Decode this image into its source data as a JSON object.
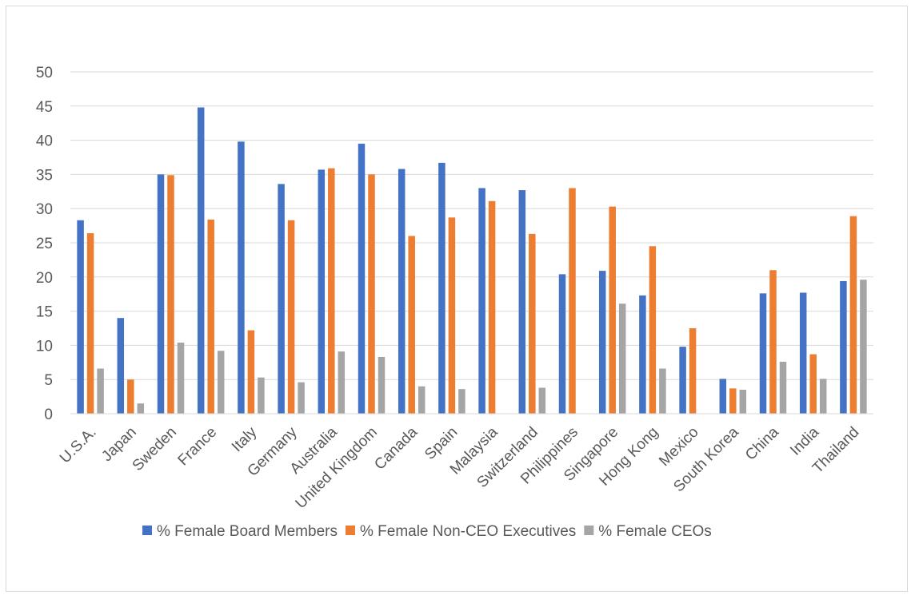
{
  "chart_data": {
    "type": "bar",
    "title": "",
    "xlabel": "",
    "ylabel": "",
    "ylim": [
      0,
      50
    ],
    "yticks": [
      "0",
      "5",
      "10",
      "15",
      "20",
      "25",
      "30",
      "35",
      "40",
      "45",
      "50"
    ],
    "grid": true,
    "legend_position": "bottom",
    "categories": [
      "U.S.A.",
      "Japan",
      "Sweden",
      "France",
      "Italy",
      "Germany",
      "Australia",
      "United Kingdom",
      "Canada",
      "Spain",
      "Malaysia",
      "Switzerland",
      "Philippines",
      "Singapore",
      "Hong Kong",
      "Mexico",
      "South Korea",
      "China",
      "India",
      "Thailand"
    ],
    "series": [
      {
        "name": "% Female Board Members",
        "color": "#4472c4",
        "values": [
          28.3,
          14.0,
          35.0,
          44.8,
          39.8,
          33.6,
          35.7,
          39.5,
          35.8,
          36.7,
          33.0,
          32.7,
          20.4,
          20.9,
          17.3,
          9.8,
          5.1,
          17.6,
          17.7,
          19.4
        ]
      },
      {
        "name": "% Female Non-CEO Executives",
        "color": "#ed7d31",
        "values": [
          26.4,
          5.0,
          34.9,
          28.4,
          12.2,
          28.3,
          35.9,
          35.0,
          26.0,
          28.7,
          31.1,
          26.3,
          33.0,
          30.3,
          24.5,
          12.5,
          3.7,
          21.0,
          8.7,
          28.9
        ]
      },
      {
        "name": "% Female CEOs",
        "color": "#a5a5a5",
        "values": [
          6.6,
          1.5,
          10.4,
          9.2,
          5.3,
          4.6,
          9.1,
          8.3,
          4.0,
          3.6,
          0,
          3.8,
          0,
          16.1,
          6.6,
          0,
          3.5,
          7.6,
          5.1,
          19.6
        ]
      }
    ]
  }
}
